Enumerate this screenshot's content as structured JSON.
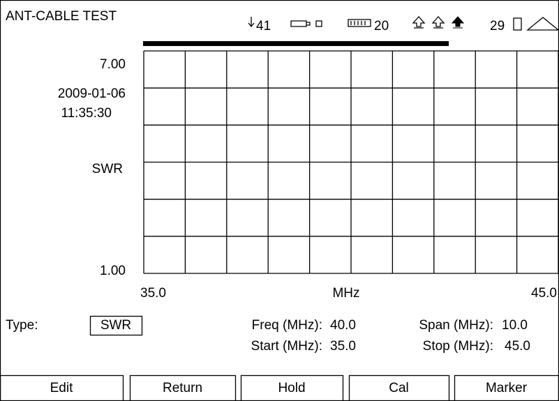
{
  "header": {
    "title": "ANT-CABLE TEST",
    "status": {
      "down_value": "41",
      "battery_value": "20",
      "signal_value": "29"
    }
  },
  "plot": {
    "y_max": "7.00",
    "date": "2009-01-06",
    "time": "11:35:30",
    "y_label": "SWR",
    "y_min": "1.00",
    "x_start": "35.0",
    "x_unit": "MHz",
    "x_end": "45.0"
  },
  "settings": {
    "type_label": "Type:",
    "type_value": "SWR",
    "freq_label": "Freq (MHz):",
    "freq_value": "40.0",
    "span_label": "Span (MHz):",
    "span_value": "10.0",
    "start_label": "Start (MHz):",
    "start_value": "35.0",
    "stop_label": "Stop (MHz):",
    "stop_value": "45.0"
  },
  "softkeys": [
    "Edit",
    "Return",
    "Hold",
    "Cal",
    "Marker"
  ]
}
